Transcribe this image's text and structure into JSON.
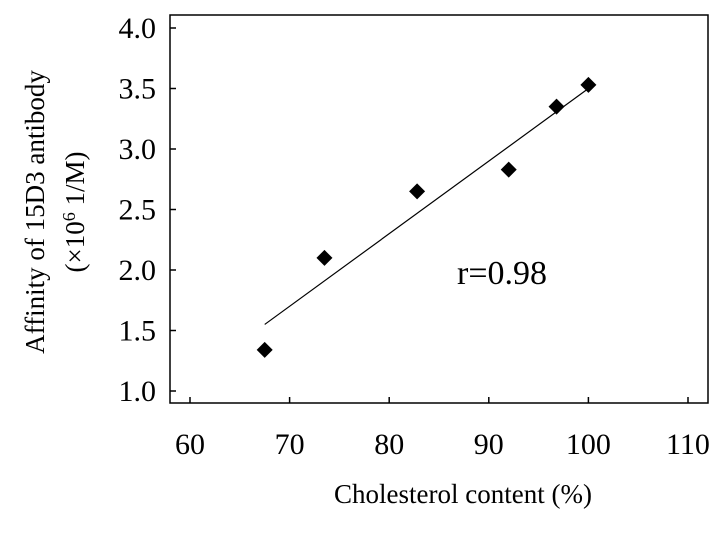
{
  "chart_data": {
    "type": "scatter",
    "title": "",
    "xlabel": "Cholesterol content (%)",
    "ylabel_line1": "Affinity of 15D3 antibody",
    "ylabel_line2_prefix": "(×10",
    "ylabel_line2_exponent": "6",
    "ylabel_line2_suffix": " 1/M)",
    "xlim": [
      60,
      110
    ],
    "ylim": [
      1.0,
      4.0
    ],
    "xticks": [
      60,
      70,
      80,
      90,
      100,
      110
    ],
    "yticks": [
      1.0,
      1.5,
      2.0,
      2.5,
      3.0,
      3.5,
      4.0
    ],
    "ytick_labels": [
      "1.0",
      "1.5",
      "2.0",
      "2.5",
      "3.0",
      "3.5",
      "4.0"
    ],
    "series": [
      {
        "marker": "diamond",
        "color": "#000000",
        "x": [
          67.5,
          73.5,
          82.8,
          92.0,
          96.8,
          100.0
        ],
        "y": [
          1.34,
          2.1,
          2.65,
          2.83,
          3.35,
          3.53
        ]
      }
    ],
    "fit_line": {
      "x": [
        67.5,
        100.0
      ],
      "y": [
        1.55,
        3.5
      ]
    },
    "annotation": "r=0.98",
    "grid": false,
    "legend": "none"
  }
}
